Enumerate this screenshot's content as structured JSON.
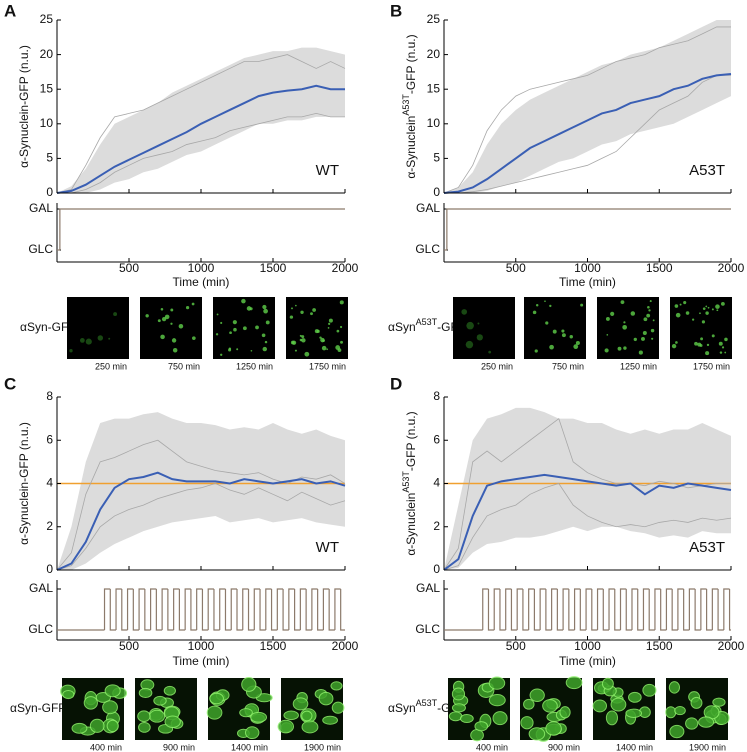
{
  "chart_data": [
    {
      "type": "line",
      "panel": "A",
      "corner_label": "WT",
      "ylabel": [
        "α-Synuclein-GFP (n.u.)"
      ],
      "xlabel": "Time (min)",
      "xlim": [
        0,
        2000
      ],
      "xticks": [
        500,
        1000,
        1500,
        2000
      ],
      "ylim": [
        0,
        25
      ],
      "yticks": [
        0,
        5,
        10,
        15,
        20,
        25
      ],
      "x": [
        0,
        100,
        200,
        300,
        400,
        500,
        600,
        700,
        800,
        900,
        1000,
        1100,
        1200,
        1300,
        1400,
        1500,
        1600,
        1700,
        1800,
        1900,
        2000
      ],
      "band": {
        "color": "#dcdcdc",
        "low": [
          0,
          0,
          0,
          0.5,
          1.5,
          2,
          3,
          3.5,
          4.5,
          5.5,
          6,
          7,
          8,
          9,
          10,
          10,
          10.5,
          10.5,
          11,
          11,
          11
        ],
        "high": [
          0,
          1,
          3.5,
          7,
          10,
          11,
          12,
          13,
          14.5,
          15.5,
          16.5,
          17.5,
          18.5,
          19.5,
          20,
          20.5,
          20.5,
          21,
          21,
          20.5,
          20
        ]
      },
      "series": [
        {
          "color": "#a8a8a8",
          "values": [
            0,
            0.5,
            4,
            8,
            11,
            11.5,
            12,
            13,
            14,
            15,
            16,
            17,
            18,
            19,
            19,
            19.5,
            20,
            19,
            18,
            19,
            18
          ]
        },
        {
          "color": "#a8a8a8",
          "values": [
            0,
            0,
            0.5,
            1.5,
            3,
            4,
            5,
            5.5,
            6,
            7,
            7.5,
            8,
            9,
            9.5,
            10,
            10.5,
            11,
            11,
            11.5,
            11,
            11
          ]
        },
        {
          "color": "#3a5fb4",
          "values": [
            0,
            0.3,
            1.2,
            2.5,
            3.8,
            4.8,
            5.8,
            6.8,
            7.8,
            8.8,
            10,
            11,
            12,
            13,
            14,
            14.5,
            14.8,
            15,
            15.5,
            15,
            15
          ]
        }
      ],
      "input": {
        "color": "#8c7a6b",
        "yticks": [
          {
            "value": 0,
            "label": "GLC"
          },
          {
            "value": 1,
            "label": "GAL"
          }
        ],
        "x": [
          0,
          20
        ],
        "values": [
          0,
          1
        ]
      },
      "image_label": [
        "αSyn-GFP"
      ],
      "images": [
        "250 min",
        "750 min",
        "1250 min",
        "1750 min"
      ]
    },
    {
      "type": "line",
      "panel": "B",
      "corner_label": "A53T",
      "ylabel": [
        "α-Synuclein",
        "A53T",
        "-GFP (n.u.)"
      ],
      "xlabel": "Time (min)",
      "xlim": [
        0,
        2000
      ],
      "xticks": [
        500,
        1000,
        1500,
        2000
      ],
      "ylim": [
        0,
        25
      ],
      "yticks": [
        0,
        5,
        10,
        15,
        20,
        25
      ],
      "x": [
        0,
        100,
        200,
        300,
        400,
        500,
        600,
        700,
        800,
        900,
        1000,
        1100,
        1200,
        1300,
        1400,
        1500,
        1600,
        1700,
        1800,
        1900,
        2000
      ],
      "band": {
        "color": "#dcdcdc",
        "low": [
          0,
          0,
          0,
          0.3,
          1,
          1.5,
          2.5,
          3.5,
          4.5,
          5,
          6,
          7,
          7.5,
          8.5,
          9,
          9.5,
          10,
          11,
          12,
          13,
          14
        ],
        "high": [
          0,
          0.8,
          3,
          7,
          10,
          12,
          13.5,
          14.5,
          15.5,
          16.5,
          17.5,
          18.5,
          19,
          20,
          20.5,
          21,
          22,
          23,
          24,
          25,
          25
        ]
      },
      "series": [
        {
          "color": "#a8a8a8",
          "values": [
            0,
            0.8,
            4,
            9,
            12,
            14,
            15,
            15.5,
            16,
            16.5,
            17,
            18,
            19,
            19.5,
            20,
            21,
            21.5,
            22,
            23,
            24,
            24
          ]
        },
        {
          "color": "#a8a8a8",
          "values": [
            0,
            0,
            0.2,
            0.5,
            1,
            1.5,
            2,
            2.5,
            3,
            3.5,
            4,
            5,
            6,
            8,
            10,
            12,
            13,
            14,
            16,
            17,
            17
          ]
        },
        {
          "color": "#3a5fb4",
          "values": [
            0,
            0.2,
            0.8,
            2,
            3.5,
            5,
            6.5,
            7.5,
            8.5,
            9.5,
            10.5,
            11.5,
            12,
            13,
            13.5,
            14,
            15,
            15.5,
            16.5,
            17,
            17.2
          ]
        }
      ],
      "input": {
        "color": "#8c7a6b",
        "yticks": [
          {
            "value": 0,
            "label": "GLC"
          },
          {
            "value": 1,
            "label": "GAL"
          }
        ],
        "x": [
          0,
          20
        ],
        "values": [
          0,
          1
        ]
      },
      "image_label": [
        "αSyn",
        "A53T",
        "-GFP"
      ],
      "images": [
        "250 min",
        "750 min",
        "1250 min",
        "1750 min"
      ]
    },
    {
      "type": "line",
      "panel": "C",
      "corner_label": "WT",
      "ylabel": [
        "α-Synuclein-GFP (n.u.)"
      ],
      "xlabel": "Time (min)",
      "xlim": [
        0,
        2000
      ],
      "xticks": [
        500,
        1000,
        1500,
        2000
      ],
      "ylim": [
        0,
        8
      ],
      "yticks": [
        0,
        2,
        4,
        6,
        8
      ],
      "reference": {
        "value": 4,
        "color": "#f0a030"
      },
      "x": [
        0,
        100,
        200,
        300,
        400,
        500,
        600,
        700,
        800,
        900,
        1000,
        1100,
        1200,
        1300,
        1400,
        1500,
        1600,
        1700,
        1800,
        1900,
        2000
      ],
      "band": {
        "color": "#dcdcdc",
        "low": [
          0,
          0,
          0.3,
          0.8,
          1.2,
          1.5,
          1.8,
          2,
          2.2,
          2.3,
          2.4,
          2.5,
          2.2,
          2.3,
          2.4,
          2.2,
          2.3,
          2.4,
          2.2,
          2.1,
          2
        ],
        "high": [
          0,
          2,
          5,
          6.8,
          7,
          7,
          7.2,
          7.3,
          7,
          6.8,
          6.8,
          6.7,
          6.5,
          6.6,
          6.5,
          6.8,
          6.5,
          6.3,
          6.5,
          6.2,
          6
        ]
      },
      "series": [
        {
          "color": "#a8a8a8",
          "values": [
            0,
            0.8,
            3.5,
            5,
            5.2,
            5.5,
            5.8,
            6,
            5.5,
            5,
            4.8,
            4.6,
            4.5,
            4.4,
            4.5,
            4.2,
            4,
            4.3,
            4.2,
            4.4,
            4
          ]
        },
        {
          "color": "#a8a8a8",
          "values": [
            0,
            0.2,
            1,
            2,
            2.5,
            2.8,
            3,
            3.3,
            3.5,
            3.7,
            3.8,
            4,
            3.7,
            3.5,
            3.8,
            3.5,
            3.2,
            3.6,
            3.3,
            3,
            3.2
          ]
        },
        {
          "color": "#3a5fb4",
          "values": [
            0,
            0.3,
            1.3,
            2.8,
            3.8,
            4.2,
            4.3,
            4.5,
            4.2,
            4.1,
            4.1,
            4.1,
            4,
            4.2,
            4.1,
            4,
            4.1,
            4.2,
            4,
            4.1,
            3.9
          ]
        }
      ],
      "input": {
        "color": "#8c7a6b",
        "yticks": [
          {
            "value": 0,
            "label": "GLC"
          },
          {
            "value": 1,
            "label": "GAL"
          }
        ],
        "x": [
          0,
          330,
          370,
          410,
          450,
          490,
          530,
          570,
          610,
          650,
          690,
          730,
          770,
          810,
          850,
          890,
          930,
          970,
          1010,
          1050,
          1090,
          1130,
          1170,
          1210,
          1250,
          1290,
          1330,
          1370,
          1410,
          1450,
          1490,
          1530,
          1570,
          1610,
          1650,
          1690,
          1730,
          1770,
          1810,
          1850,
          1890,
          1930,
          1970
        ],
        "values": [
          0,
          1,
          0,
          1,
          0,
          1,
          0,
          1,
          0,
          1,
          0,
          1,
          0,
          1,
          0,
          1,
          0,
          1,
          0,
          1,
          0,
          1,
          0,
          1,
          0,
          1,
          0,
          1,
          0,
          1,
          0,
          1,
          0,
          1,
          0,
          1,
          0,
          1,
          0,
          1,
          0,
          1,
          0
        ]
      },
      "image_label": [
        "αSyn-GFP"
      ],
      "images": [
        "400 min",
        "900 min",
        "1400 min",
        "1900 min"
      ]
    },
    {
      "type": "line",
      "panel": "D",
      "corner_label": "A53T",
      "ylabel": [
        "α-Synuclein",
        "A53T",
        "-GFP (n.u.)"
      ],
      "xlabel": "Time (min)",
      "xlim": [
        0,
        2000
      ],
      "xticks": [
        500,
        1000,
        1500,
        2000
      ],
      "ylim": [
        0,
        8
      ],
      "yticks": [
        0,
        2,
        4,
        6,
        8
      ],
      "reference": {
        "value": 4,
        "color": "#f0a030"
      },
      "x": [
        0,
        100,
        200,
        300,
        400,
        500,
        600,
        700,
        800,
        900,
        1000,
        1100,
        1200,
        1300,
        1400,
        1500,
        1600,
        1700,
        1800,
        1900,
        2000
      ],
      "band": {
        "color": "#dcdcdc",
        "low": [
          0,
          0.1,
          0.8,
          1.2,
          1.3,
          1.5,
          1.5,
          1.6,
          1.8,
          2,
          1.8,
          2,
          2,
          1.8,
          1.7,
          1.5,
          1.6,
          1.5,
          1.8,
          1.7,
          1.7
        ],
        "high": [
          0,
          3,
          6,
          7,
          7.2,
          7.5,
          7.5,
          7.3,
          7,
          7,
          6.8,
          6.8,
          6.5,
          6.3,
          6.5,
          6.3,
          6.5,
          6.5,
          6.8,
          6.5,
          6.2
        ]
      },
      "series": [
        {
          "color": "#a8a8a8",
          "values": [
            0,
            1,
            5,
            5.5,
            5,
            5.5,
            6,
            6.5,
            7,
            5,
            4.5,
            4.2,
            4,
            4,
            3.9,
            4.1,
            4,
            3.8,
            3.9,
            4,
            4
          ]
        },
        {
          "color": "#a8a8a8",
          "values": [
            0,
            0.2,
            1.5,
            2.5,
            2.8,
            3,
            3.5,
            3.8,
            4,
            3,
            2.5,
            2.2,
            2,
            2.1,
            2,
            2.2,
            2.3,
            2.2,
            2.4,
            2.3,
            2.4
          ]
        },
        {
          "color": "#3a5fb4",
          "values": [
            0,
            0.5,
            2.5,
            3.9,
            4.1,
            4.2,
            4.3,
            4.4,
            4.3,
            4.2,
            4.1,
            4,
            3.9,
            4,
            3.5,
            3.9,
            3.8,
            4,
            3.9,
            3.8,
            3.7
          ]
        }
      ],
      "input": {
        "color": "#8c7a6b",
        "yticks": [
          {
            "value": 0,
            "label": "GLC"
          },
          {
            "value": 1,
            "label": "GAL"
          }
        ],
        "x": [
          0,
          270,
          310,
          350,
          390,
          430,
          470,
          510,
          550,
          590,
          630,
          670,
          710,
          750,
          790,
          830,
          870,
          910,
          950,
          990,
          1030,
          1070,
          1110,
          1150,
          1190,
          1230,
          1270,
          1310,
          1350,
          1390,
          1430,
          1470,
          1510,
          1550,
          1590,
          1630,
          1670,
          1710,
          1750,
          1790,
          1830,
          1870,
          1910,
          1950,
          1990
        ],
        "values": [
          0,
          1,
          0,
          1,
          0,
          1,
          0,
          1,
          0,
          1,
          0,
          1,
          0,
          1,
          0,
          1,
          0,
          1,
          0,
          1,
          0,
          1,
          0,
          1,
          0,
          1,
          0,
          1,
          0,
          1,
          0,
          1,
          0,
          1,
          0,
          1,
          0,
          1,
          0,
          1,
          0,
          1,
          0,
          1,
          0
        ]
      },
      "image_label": [
        "αSyn",
        "A53T",
        "-GFP"
      ],
      "images": [
        "400 min",
        "900 min",
        "1400 min",
        "1900 min"
      ]
    }
  ]
}
